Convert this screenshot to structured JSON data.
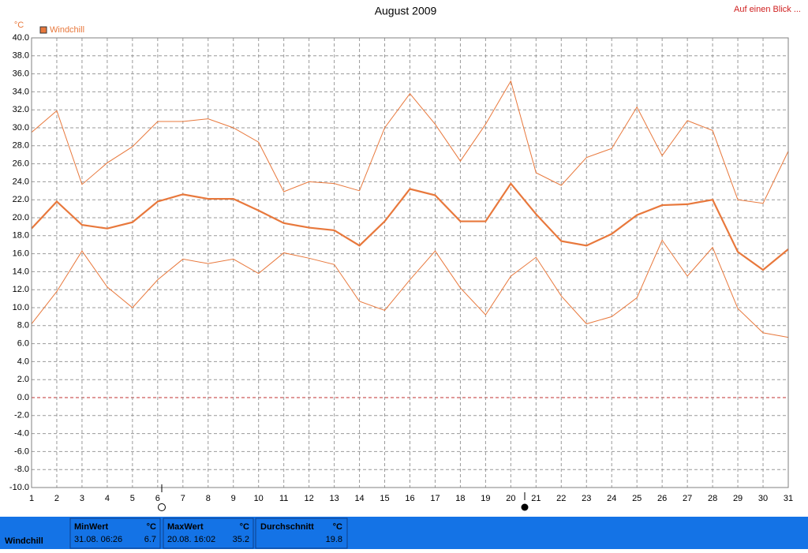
{
  "chart_data": {
    "type": "line",
    "title": "August 2009",
    "y_unit": "°C",
    "link": "Auf einen Blick ...",
    "x": [
      1,
      2,
      3,
      4,
      5,
      6,
      7,
      8,
      9,
      10,
      11,
      12,
      13,
      14,
      15,
      16,
      17,
      18,
      19,
      20,
      21,
      22,
      23,
      24,
      25,
      26,
      27,
      28,
      29,
      30,
      31
    ],
    "xlim": [
      1,
      31
    ],
    "xticks": [
      1,
      2,
      3,
      4,
      5,
      6,
      7,
      8,
      9,
      10,
      11,
      12,
      13,
      14,
      15,
      16,
      17,
      18,
      19,
      20,
      21,
      22,
      23,
      24,
      25,
      26,
      27,
      28,
      29,
      30,
      31
    ],
    "ylim": [
      -10,
      40
    ],
    "yticks": [
      {
        "value": 40,
        "label": "40.0"
      },
      {
        "value": 38,
        "label": "38.0"
      },
      {
        "value": 36,
        "label": "36.0"
      },
      {
        "value": 34,
        "label": "34.0"
      },
      {
        "value": 32,
        "label": "32.0"
      },
      {
        "value": 30,
        "label": "30.0"
      },
      {
        "value": 28,
        "label": "28.0"
      },
      {
        "value": 26,
        "label": "26.0"
      },
      {
        "value": 24,
        "label": "24.0"
      },
      {
        "value": 22,
        "label": "22.0"
      },
      {
        "value": 20,
        "label": "20.0"
      },
      {
        "value": 18,
        "label": "18.0"
      },
      {
        "value": 16,
        "label": "16.0"
      },
      {
        "value": 14,
        "label": "14.0"
      },
      {
        "value": 12,
        "label": "12.0"
      },
      {
        "value": 10,
        "label": "10.0"
      },
      {
        "value": 8,
        "label": "8.0"
      },
      {
        "value": 6,
        "label": "6.0"
      },
      {
        "value": 4,
        "label": "4.0"
      },
      {
        "value": 2,
        "label": "2.0"
      },
      {
        "value": 0,
        "label": "0.0"
      },
      {
        "value": -2,
        "label": "-2.0"
      },
      {
        "value": -4,
        "label": "-4.0"
      },
      {
        "value": -6,
        "label": "-6.0"
      },
      {
        "value": -8,
        "label": "-8.0"
      },
      {
        "value": -10,
        "label": "-10.0"
      }
    ],
    "grid": true,
    "zero_line_color": "#c03030",
    "legend": "top-left",
    "series": [
      {
        "name": "Windchill",
        "color": "#e8783c",
        "values": [
          18.8,
          21.8,
          19.2,
          18.8,
          19.5,
          21.8,
          22.6,
          22.1,
          22.1,
          20.8,
          19.4,
          18.9,
          18.6,
          16.9,
          19.6,
          23.2,
          22.5,
          19.6,
          19.6,
          23.8,
          20.4,
          17.4,
          16.9,
          18.2,
          20.3,
          21.4,
          21.5,
          22.0,
          16.2,
          14.2,
          16.5
        ]
      },
      {
        "color": "#e8783c",
        "values": [
          29.5,
          31.9,
          23.7,
          26.1,
          27.9,
          30.7,
          30.7,
          31.0,
          30.0,
          28.4,
          22.9,
          24.0,
          23.8,
          23.0,
          30.0,
          33.8,
          30.4,
          26.3,
          30.4,
          35.2,
          25.0,
          23.6,
          26.7,
          27.7,
          32.3,
          26.9,
          30.8,
          29.7,
          22.0,
          21.6,
          27.4
        ]
      },
      {
        "color": "#e8783c",
        "values": [
          8.2,
          11.8,
          16.3,
          12.3,
          10.0,
          13.1,
          15.4,
          14.9,
          15.4,
          13.8,
          16.1,
          15.5,
          14.8,
          10.7,
          9.7,
          13.1,
          16.3,
          12.2,
          9.2,
          13.5,
          15.6,
          11.3,
          8.2,
          9.0,
          11.1,
          17.5,
          13.5,
          16.7,
          9.9,
          7.2,
          6.7
        ]
      }
    ]
  },
  "footer": {
    "label": "Windchill",
    "min": {
      "title": "MinWert",
      "unit": "°C",
      "date": "31.08.  06:26",
      "value": 6.7
    },
    "max": {
      "title": "MaxWert",
      "unit": "°C",
      "date": "20.08.  16:02",
      "value": 35.2
    },
    "avg": {
      "title": "Durchschnitt",
      "unit": "°C",
      "value": 19.8
    }
  }
}
